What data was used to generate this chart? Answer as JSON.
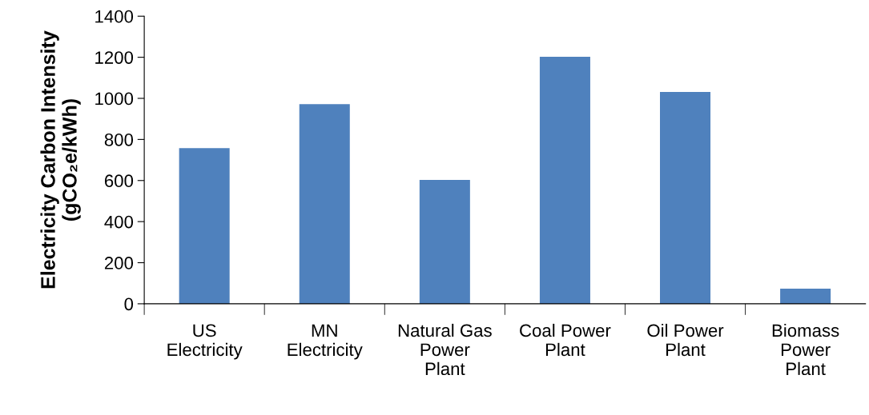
{
  "chart_data": {
    "type": "bar",
    "ylabel": "Electricity Carbon Intensity\n(gCO₂e/kWh)",
    "categories": [
      "US\nElectricity",
      "MN\nElectricity",
      "Natural Gas\nPower\nPlant",
      "Coal Power\nPlant",
      "Oil Power\nPlant",
      "Biomass\nPower\nPlant"
    ],
    "values": [
      758,
      972,
      603,
      1202,
      1031,
      74
    ],
    "color": "#4f81bd",
    "ylim": [
      0,
      1400
    ],
    "yticks": [
      0,
      200,
      400,
      600,
      800,
      1000,
      1200,
      1400
    ],
    "grid": false,
    "legend": false
  }
}
